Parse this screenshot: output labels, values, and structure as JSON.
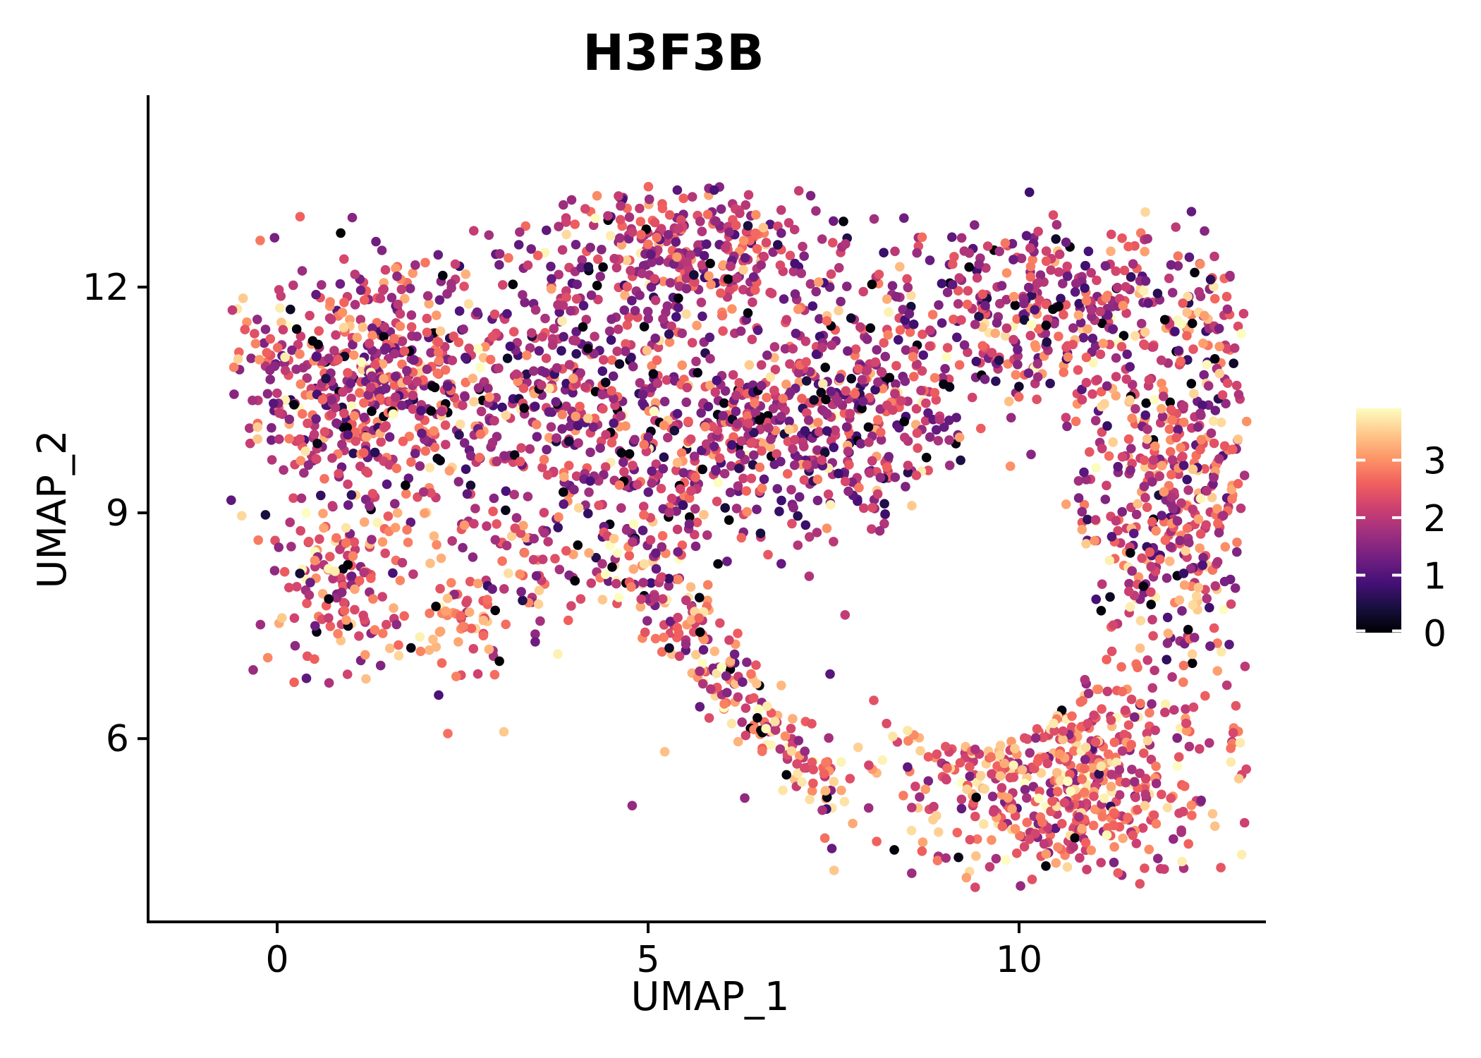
{
  "title": "H3F3B",
  "axes": {
    "x_label": "UMAP_1",
    "y_label": "UMAP_2"
  },
  "colors": {
    "background": "#ffffff",
    "axis": "#000000",
    "colorbar_tick": "#ffffff"
  },
  "chart_data": {
    "type": "scatter",
    "title": "H3F3B",
    "xlabel": "UMAP_1",
    "ylabel": "UMAP_2",
    "grid": false,
    "legend_position": "right",
    "x_range": [
      -1.74,
      13.31
    ],
    "y_range": [
      3.56,
      14.53
    ],
    "x_ticks": [
      {
        "label": "0",
        "value": 0
      },
      {
        "label": "5",
        "value": 5
      },
      {
        "label": "10",
        "value": 10
      }
    ],
    "y_ticks": [
      {
        "label": "12",
        "value": 12
      },
      {
        "label": "9",
        "value": 9
      },
      {
        "label": "6",
        "value": 6
      }
    ],
    "colorbar": {
      "min": 0,
      "max": 3.9,
      "ticks": [
        {
          "label": "3",
          "value": 3
        },
        {
          "label": "2",
          "value": 2
        },
        {
          "label": "1",
          "value": 1
        },
        {
          "label": "0",
          "value": 0
        }
      ]
    },
    "colormap": {
      "name": "magma",
      "stops": [
        {
          "t": 0.0,
          "color": "#000004"
        },
        {
          "t": 0.111,
          "color": "#180f3e"
        },
        {
          "t": 0.222,
          "color": "#451077"
        },
        {
          "t": 0.333,
          "color": "#721f81"
        },
        {
          "t": 0.444,
          "color": "#9f2f7f"
        },
        {
          "t": 0.556,
          "color": "#cd4071"
        },
        {
          "t": 0.667,
          "color": "#f1605d"
        },
        {
          "t": 0.778,
          "color": "#fd9567"
        },
        {
          "t": 0.889,
          "color": "#fec98d"
        },
        {
          "t": 1.0,
          "color": "#fcfdbf"
        }
      ]
    },
    "point_radius_px": 6.8,
    "point_count_estimate": 3900,
    "seed": 11,
    "bounds": {
      "x_min": -0.62,
      "x_max": 13.08,
      "y_min": 3.95,
      "y_max": 13.35
    },
    "hole": {
      "cx": 9.4,
      "cy": 7.6,
      "rx": 1.65,
      "ry": 1.7
    },
    "clusters": [
      {
        "name": "left-main",
        "type": "gauss",
        "cx": 1.3,
        "cy": 10.7,
        "sx": 1.0,
        "sy": 0.85,
        "n": 620,
        "expr_mean": 2.05,
        "expr_sd": 0.78,
        "black": 0.045,
        "bright": 0.03
      },
      {
        "name": "left-lower-arm",
        "type": "gauss",
        "cx": 1.05,
        "cy": 8.1,
        "sx": 0.55,
        "sy": 0.65,
        "n": 150,
        "expr_mean": 2.45,
        "expr_sd": 0.7,
        "black": 0.03,
        "bright": 0.05
      },
      {
        "name": "left-arm-blob",
        "type": "gauss",
        "cx": 2.55,
        "cy": 7.5,
        "sx": 0.24,
        "sy": 0.3,
        "n": 48,
        "expr_mean": 2.85,
        "expr_sd": 0.5,
        "black": 0.02,
        "bright": 0.06
      },
      {
        "name": "bridge",
        "type": "gauss",
        "cx": 3.8,
        "cy": 10.55,
        "sx": 0.6,
        "sy": 0.85,
        "n": 220,
        "expr_mean": 1.95,
        "expr_sd": 0.75,
        "black": 0.04,
        "bright": 0.025
      },
      {
        "name": "bridge-lower",
        "type": "gauss",
        "cx": 3.3,
        "cy": 8.25,
        "sx": 0.45,
        "sy": 0.55,
        "n": 60,
        "expr_mean": 2.1,
        "expr_sd": 0.7,
        "black": 0.03,
        "bright": 0.04
      },
      {
        "name": "top-middle",
        "type": "gauss",
        "cx": 5.6,
        "cy": 12.45,
        "sx": 0.95,
        "sy": 0.5,
        "n": 320,
        "expr_mean": 2.05,
        "expr_sd": 0.65,
        "black": 0.03,
        "bright": 0.02
      },
      {
        "name": "middle",
        "type": "gauss",
        "cx": 5.85,
        "cy": 10.05,
        "sx": 1.05,
        "sy": 0.8,
        "n": 420,
        "expr_mean": 1.9,
        "expr_sd": 0.72,
        "black": 0.04,
        "bright": 0.025
      },
      {
        "name": "middle-right",
        "type": "gauss",
        "cx": 7.9,
        "cy": 10.4,
        "sx": 0.75,
        "sy": 0.9,
        "n": 330,
        "expr_mean": 1.85,
        "expr_sd": 0.72,
        "black": 0.04,
        "bright": 0.02
      },
      {
        "name": "chain",
        "type": "line",
        "x1": 4.6,
        "y1": 8.75,
        "x2": 6.25,
        "y2": 6.55,
        "w": 0.26,
        "n": 170,
        "expr_mean": 2.3,
        "expr_sd": 0.8,
        "black": 0.03,
        "bright": 0.08
      },
      {
        "name": "tail",
        "type": "line",
        "x1": 6.3,
        "y1": 6.45,
        "x2": 7.55,
        "y2": 5.25,
        "w": 0.2,
        "n": 80,
        "expr_mean": 2.65,
        "expr_sd": 0.7,
        "black": 0.05,
        "bright": 0.12
      },
      {
        "name": "right-top",
        "type": "gauss",
        "cx": 10.3,
        "cy": 11.7,
        "sx": 1.0,
        "sy": 0.6,
        "n": 340,
        "expr_mean": 1.95,
        "expr_sd": 0.75,
        "black": 0.035,
        "bright": 0.02
      },
      {
        "name": "right-top-tip",
        "type": "gauss",
        "cx": 12.55,
        "cy": 11.55,
        "sx": 0.35,
        "sy": 0.5,
        "n": 45,
        "expr_mean": 2.0,
        "expr_sd": 0.7,
        "black": 0.03,
        "bright": 0.02
      },
      {
        "name": "right-edge",
        "type": "gauss",
        "cx": 12.0,
        "cy": 9.2,
        "sx": 0.62,
        "sy": 1.25,
        "n": 450,
        "expr_mean": 2.25,
        "expr_sd": 0.8,
        "black": 0.03,
        "bright": 0.04
      },
      {
        "name": "bottom-right",
        "type": "gauss",
        "cx": 10.45,
        "cy": 5.5,
        "sx": 1.05,
        "sy": 0.75,
        "n": 540,
        "expr_mean": 2.55,
        "expr_sd": 0.7,
        "black": 0.015,
        "bright": 0.09
      },
      {
        "name": "sparse-field",
        "type": "uniform",
        "x1": -0.4,
        "y1": 4.6,
        "x2": 12.8,
        "y2": 13.1,
        "n": 90,
        "expr_mean": 2.0,
        "expr_sd": 0.8,
        "black": 0.04,
        "bright": 0.03
      }
    ]
  }
}
